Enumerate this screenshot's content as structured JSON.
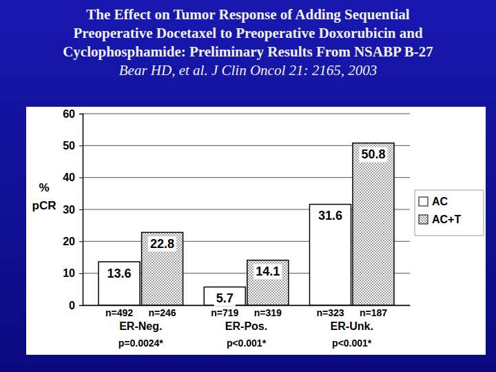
{
  "chart_data": {
    "type": "bar",
    "title": [
      "The Effect on Tumor Response of Adding Sequential",
      "Preoperative Docetaxel to Preoperative Doxorubicin and",
      "Cyclophosphamide: Preliminary Results From NSABP B-27"
    ],
    "subtitle": "Bear HD, et al. J Clin Oncol 21: 2165, 2003",
    "y_label": "% pCR",
    "categories": [
      "ER-Neg.",
      "ER-Pos.",
      "ER-Unk."
    ],
    "series": [
      {
        "name": "AC",
        "color": "#ffffff",
        "values": [
          13.6,
          5.7,
          31.6
        ],
        "n_labels": [
          "n=492",
          "n=719",
          "n=323"
        ]
      },
      {
        "name": "AC+T",
        "color": "#707070",
        "values": [
          22.8,
          14.1,
          50.8
        ],
        "n_labels": [
          "n=246",
          "n=319",
          "n=187"
        ]
      }
    ],
    "p_values": [
      "p=0.0024*",
      "p<0.001*",
      "p<0.001*"
    ],
    "ylim": [
      0,
      60
    ],
    "yticks": [
      0,
      10,
      20,
      30,
      40,
      50,
      60
    ],
    "grid": true,
    "legend": "right",
    "data_labels": true
  }
}
